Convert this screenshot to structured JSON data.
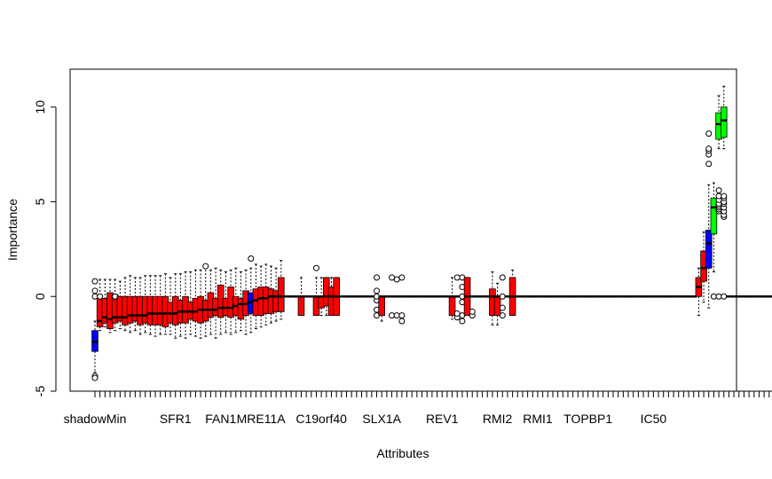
{
  "chart_data": {
    "type": "boxplot",
    "xlabel": "Attributes",
    "ylabel": "Importance",
    "ylim": [
      -5,
      12
    ],
    "yticks": [
      -5,
      0,
      5,
      10
    ],
    "n_boxes": 156,
    "colors": {
      "rejected": "#ff0000",
      "shadow": "#0000ff",
      "confirmed": "#00ff00",
      "tentative": "#ffff00"
    },
    "tick_labels": [
      {
        "i": 0,
        "label": "shadowMin"
      },
      {
        "i": 16,
        "label": "SFR1"
      },
      {
        "i": 25,
        "label": "FAN1"
      },
      {
        "i": 33,
        "label": "MRE11A"
      },
      {
        "i": 45,
        "label": "C19orf40"
      },
      {
        "i": 57,
        "label": "SLX1A"
      },
      {
        "i": 69,
        "label": "REV1"
      },
      {
        "i": 80,
        "label": "RMI2"
      },
      {
        "i": 88,
        "label": "RMI1"
      },
      {
        "i": 98,
        "label": "TOPBP1"
      },
      {
        "i": 111,
        "label": "IC50"
      }
    ],
    "boxes": [
      {
        "i": 0,
        "status": "shadow",
        "min": -4.0,
        "q1": -2.9,
        "med": -2.4,
        "q3": -1.8,
        "max": -1.3,
        "outliers": [
          -4.2,
          -4.3,
          0.0,
          0.3,
          0.8
        ]
      },
      {
        "i": 1,
        "status": "rejected",
        "min": -1.8,
        "q1": -1.6,
        "med": -1.3,
        "q3": -0.1,
        "max": 0.9,
        "outliers": [
          0.0
        ]
      },
      {
        "i": 2,
        "status": "rejected",
        "min": -1.6,
        "q1": -1.4,
        "med": -1.1,
        "q3": -0.1,
        "max": 0.9,
        "outliers": []
      },
      {
        "i": 3,
        "status": "rejected",
        "min": -1.9,
        "q1": -1.7,
        "med": -1.2,
        "q3": 0.2,
        "max": 0.9,
        "outliers": []
      },
      {
        "i": 4,
        "status": "rejected",
        "min": -1.8,
        "q1": -1.4,
        "med": -1.1,
        "q3": 0.1,
        "max": 0.9,
        "outliers": [
          0.0
        ]
      },
      {
        "i": 5,
        "status": "rejected",
        "min": -1.7,
        "q1": -1.3,
        "med": -1.1,
        "q3": 0.0,
        "max": 0.8,
        "outliers": []
      },
      {
        "i": 6,
        "status": "rejected",
        "min": -1.8,
        "q1": -1.5,
        "med": -1.1,
        "q3": 0.0,
        "max": 1.0,
        "outliers": []
      },
      {
        "i": 7,
        "status": "rejected",
        "min": -1.9,
        "q1": -1.4,
        "med": -1.0,
        "q3": 0.0,
        "max": 1.1,
        "outliers": []
      },
      {
        "i": 8,
        "status": "rejected",
        "min": -1.8,
        "q1": -1.3,
        "med": -1.0,
        "q3": 0.0,
        "max": 1.0,
        "outliers": []
      },
      {
        "i": 9,
        "status": "rejected",
        "min": -2.0,
        "q1": -1.5,
        "med": -1.0,
        "q3": 0.0,
        "max": 1.0,
        "outliers": []
      },
      {
        "i": 10,
        "status": "rejected",
        "min": -1.9,
        "q1": -1.4,
        "med": -1.0,
        "q3": 0.0,
        "max": 1.1,
        "outliers": []
      },
      {
        "i": 11,
        "status": "rejected",
        "min": -2.0,
        "q1": -1.5,
        "med": -0.9,
        "q3": 0.0,
        "max": 1.1,
        "outliers": []
      },
      {
        "i": 12,
        "status": "rejected",
        "min": -2.1,
        "q1": -1.5,
        "med": -0.9,
        "q3": 0.0,
        "max": 1.1,
        "outliers": []
      },
      {
        "i": 13,
        "status": "rejected",
        "min": -2.0,
        "q1": -1.5,
        "med": -0.9,
        "q3": 0.0,
        "max": 1.1,
        "outliers": []
      },
      {
        "i": 14,
        "status": "rejected",
        "min": -2.0,
        "q1": -1.6,
        "med": -0.9,
        "q3": 0.0,
        "max": 1.2,
        "outliers": []
      },
      {
        "i": 15,
        "status": "rejected",
        "min": -2.0,
        "q1": -1.4,
        "med": -0.9,
        "q3": -0.3,
        "max": 1.0,
        "outliers": []
      },
      {
        "i": 16,
        "status": "rejected",
        "min": -2.2,
        "q1": -1.5,
        "med": -0.9,
        "q3": 0.0,
        "max": 1.2,
        "outliers": []
      },
      {
        "i": 17,
        "status": "rejected",
        "min": -2.1,
        "q1": -1.4,
        "med": -0.8,
        "q3": -0.2,
        "max": 1.2,
        "outliers": []
      },
      {
        "i": 18,
        "status": "rejected",
        "min": -2.2,
        "q1": -1.4,
        "med": -0.8,
        "q3": 0.0,
        "max": 1.3,
        "outliers": []
      },
      {
        "i": 19,
        "status": "rejected",
        "min": -2.0,
        "q1": -1.2,
        "med": -0.8,
        "q3": -0.3,
        "max": 1.3,
        "outliers": []
      },
      {
        "i": 20,
        "status": "rejected",
        "min": -2.1,
        "q1": -1.3,
        "med": -0.8,
        "q3": -0.1,
        "max": 1.4,
        "outliers": []
      },
      {
        "i": 21,
        "status": "rejected",
        "min": -2.2,
        "q1": -1.4,
        "med": -0.7,
        "q3": 0.0,
        "max": 1.4,
        "outliers": []
      },
      {
        "i": 22,
        "status": "rejected",
        "min": -2.1,
        "q1": -1.3,
        "med": -0.7,
        "q3": -0.2,
        "max": 1.6,
        "outliers": [
          1.6
        ]
      },
      {
        "i": 23,
        "status": "rejected",
        "min": -2.0,
        "q1": -1.1,
        "med": -0.7,
        "q3": 0.2,
        "max": 1.4,
        "outliers": []
      },
      {
        "i": 24,
        "status": "rejected",
        "min": -2.2,
        "q1": -1.0,
        "med": -0.7,
        "q3": -0.1,
        "max": 1.5,
        "outliers": []
      },
      {
        "i": 25,
        "status": "rejected",
        "min": -2.0,
        "q1": -1.1,
        "med": -0.6,
        "q3": 0.6,
        "max": 1.4,
        "outliers": []
      },
      {
        "i": 26,
        "status": "rejected",
        "min": -1.9,
        "q1": -1.0,
        "med": -0.6,
        "q3": -0.1,
        "max": 1.3,
        "outliers": []
      },
      {
        "i": 27,
        "status": "rejected",
        "min": -2.0,
        "q1": -1.1,
        "med": -0.6,
        "q3": 0.5,
        "max": 1.4,
        "outliers": []
      },
      {
        "i": 28,
        "status": "rejected",
        "min": -1.9,
        "q1": -1.0,
        "med": -0.5,
        "q3": 0.0,
        "max": 1.5,
        "outliers": []
      },
      {
        "i": 29,
        "status": "rejected",
        "min": -1.8,
        "q1": -1.2,
        "med": -0.4,
        "q3": -0.1,
        "max": 1.3,
        "outliers": []
      },
      {
        "i": 30,
        "status": "rejected",
        "min": -2.0,
        "q1": -1.0,
        "med": -0.4,
        "q3": 0.3,
        "max": 1.4,
        "outliers": []
      },
      {
        "i": 31,
        "status": "shadow",
        "min": -1.9,
        "q1": -0.9,
        "med": -0.3,
        "q3": 0.2,
        "max": 1.5,
        "outliers": [
          2.0
        ]
      },
      {
        "i": 32,
        "status": "rejected",
        "min": -1.7,
        "q1": -1.0,
        "med": -0.2,
        "q3": 0.4,
        "max": 1.7,
        "outliers": []
      },
      {
        "i": 33,
        "status": "rejected",
        "min": -1.6,
        "q1": -1.0,
        "med": -0.1,
        "q3": 0.5,
        "max": 1.6,
        "outliers": []
      },
      {
        "i": 34,
        "status": "rejected",
        "min": -1.5,
        "q1": -0.9,
        "med": -0.1,
        "q3": 0.5,
        "max": 1.7,
        "outliers": []
      },
      {
        "i": 35,
        "status": "rejected",
        "min": -1.4,
        "q1": -0.9,
        "med": 0.0,
        "q3": 0.4,
        "max": 1.6,
        "outliers": []
      },
      {
        "i": 36,
        "status": "rejected",
        "min": -1.3,
        "q1": -0.8,
        "med": 0.0,
        "q3": 0.3,
        "max": 1.5,
        "outliers": []
      },
      {
        "i": 37,
        "status": "rejected",
        "min": -1.2,
        "q1": -0.8,
        "med": 0.0,
        "q3": 1.0,
        "max": 1.9,
        "outliers": []
      },
      {
        "i": 41,
        "status": "rejected",
        "min": -1.0,
        "q1": -1.0,
        "med": 0.0,
        "q3": 0.0,
        "max": 1.0,
        "outliers": []
      },
      {
        "i": 44,
        "status": "rejected",
        "min": -1.0,
        "q1": -1.0,
        "med": 0.0,
        "q3": 0.0,
        "max": 1.0,
        "outliers": [
          1.5
        ]
      },
      {
        "i": 45,
        "status": "rejected",
        "min": -1.0,
        "q1": -0.6,
        "med": 0.0,
        "q3": 0.0,
        "max": 1.0,
        "outliers": []
      },
      {
        "i": 46,
        "status": "rejected",
        "min": -1.0,
        "q1": -0.5,
        "med": 0.0,
        "q3": 1.0,
        "max": 1.0,
        "outliers": []
      },
      {
        "i": 47,
        "status": "rejected",
        "min": -1.0,
        "q1": -1.0,
        "med": 0.0,
        "q3": 0.5,
        "max": 1.0,
        "outliers": []
      },
      {
        "i": 48,
        "status": "rejected",
        "min": -1.0,
        "q1": -1.0,
        "med": 0.0,
        "q3": 1.0,
        "max": 1.0,
        "outliers": []
      },
      {
        "i": 56,
        "status": "rejected",
        "min": 0.0,
        "q1": 0.0,
        "med": 0.0,
        "q3": 0.0,
        "max": 0.0,
        "outliers": [
          -1.0,
          -0.7,
          -0.2,
          0.0,
          0.3,
          1.0
        ]
      },
      {
        "i": 57,
        "status": "rejected",
        "min": -1.3,
        "q1": -1.0,
        "med": 0.0,
        "q3": 0.0,
        "max": 0.0,
        "outliers": []
      },
      {
        "i": 59,
        "status": "rejected",
        "min": 0.0,
        "q1": 0.0,
        "med": 0.0,
        "q3": 0.0,
        "max": 0.0,
        "outliers": [
          -1.0,
          1.0
        ]
      },
      {
        "i": 60,
        "status": "rejected",
        "min": 0.0,
        "q1": 0.0,
        "med": 0.0,
        "q3": 0.0,
        "max": 0.0,
        "outliers": [
          -1.0,
          0.9
        ]
      },
      {
        "i": 61,
        "status": "rejected",
        "min": 0.0,
        "q1": 0.0,
        "med": 0.0,
        "q3": 0.0,
        "max": 0.0,
        "outliers": [
          -1.3,
          -1.0,
          1.0
        ]
      },
      {
        "i": 71,
        "status": "rejected",
        "min": -1.2,
        "q1": -1.0,
        "med": 0.0,
        "q3": 0.0,
        "max": 1.0,
        "outliers": []
      },
      {
        "i": 72,
        "status": "rejected",
        "min": 0.0,
        "q1": 0.0,
        "med": 0.0,
        "q3": 0.0,
        "max": 0.0,
        "outliers": [
          -1.1,
          -0.9,
          1.0
        ]
      },
      {
        "i": 73,
        "status": "rejected",
        "min": 0.0,
        "q1": 0.0,
        "med": 0.0,
        "q3": 0.0,
        "max": 0.0,
        "outliers": [
          -1.3,
          -1.0,
          -0.3,
          0.0,
          0.5,
          1.0
        ]
      },
      {
        "i": 74,
        "status": "rejected",
        "min": -1.0,
        "q1": -1.0,
        "med": 0.0,
        "q3": 1.0,
        "max": 1.0,
        "outliers": []
      },
      {
        "i": 75,
        "status": "rejected",
        "min": 0.0,
        "q1": 0.0,
        "med": 0.0,
        "q3": 0.0,
        "max": 0.0,
        "outliers": [
          -1.0,
          -0.8
        ]
      },
      {
        "i": 79,
        "status": "rejected",
        "min": -1.5,
        "q1": -1.0,
        "med": 0.0,
        "q3": 0.4,
        "max": 1.3,
        "outliers": []
      },
      {
        "i": 80,
        "status": "rejected",
        "min": -1.5,
        "q1": -1.0,
        "med": 0.0,
        "q3": 0.0,
        "max": 0.7,
        "outliers": []
      },
      {
        "i": 81,
        "status": "rejected",
        "min": 0.0,
        "q1": 0.0,
        "med": 0.0,
        "q3": 0.0,
        "max": 0.0,
        "outliers": [
          -1.0,
          -0.6,
          0.0,
          1.0
        ]
      },
      {
        "i": 83,
        "status": "rejected",
        "min": -1.0,
        "q1": -1.0,
        "med": 0.0,
        "q3": 1.0,
        "max": 1.4,
        "outliers": []
      },
      {
        "i": 120,
        "status": "rejected",
        "min": -1.0,
        "q1": 0.0,
        "med": 0.5,
        "q3": 1.0,
        "max": 1.5,
        "outliers": []
      },
      {
        "i": 121,
        "status": "rejected",
        "min": -0.3,
        "q1": 0.8,
        "med": 1.5,
        "q3": 2.4,
        "max": 3.4,
        "outliers": []
      },
      {
        "i": 122,
        "status": "shadow",
        "min": -0.6,
        "q1": 1.5,
        "med": 2.8,
        "q3": 3.5,
        "max": 5.9,
        "outliers": [
          7.0,
          7.5,
          7.7,
          7.8,
          8.6
        ]
      },
      {
        "i": 123,
        "status": "confirmed",
        "min": 1.3,
        "q1": 3.3,
        "med": 4.7,
        "q3": 5.2,
        "max": 6.0,
        "outliers": [
          0.0
        ]
      },
      {
        "i": 124,
        "status": "confirmed",
        "min": 7.8,
        "q1": 8.3,
        "med": 9.1,
        "q3": 9.7,
        "max": 10.6,
        "outliers": [
          0.0,
          4.5,
          4.6,
          4.7,
          4.8,
          4.9,
          5.1,
          5.3,
          5.6
        ]
      },
      {
        "i": 125,
        "status": "confirmed",
        "min": 7.8,
        "q1": 8.4,
        "med": 9.3,
        "q3": 10.0,
        "max": 11.1,
        "outliers": [
          0.0,
          4.2,
          4.3,
          4.5,
          4.7,
          4.9,
          5.0,
          5.2,
          5.3
        ]
      }
    ]
  }
}
